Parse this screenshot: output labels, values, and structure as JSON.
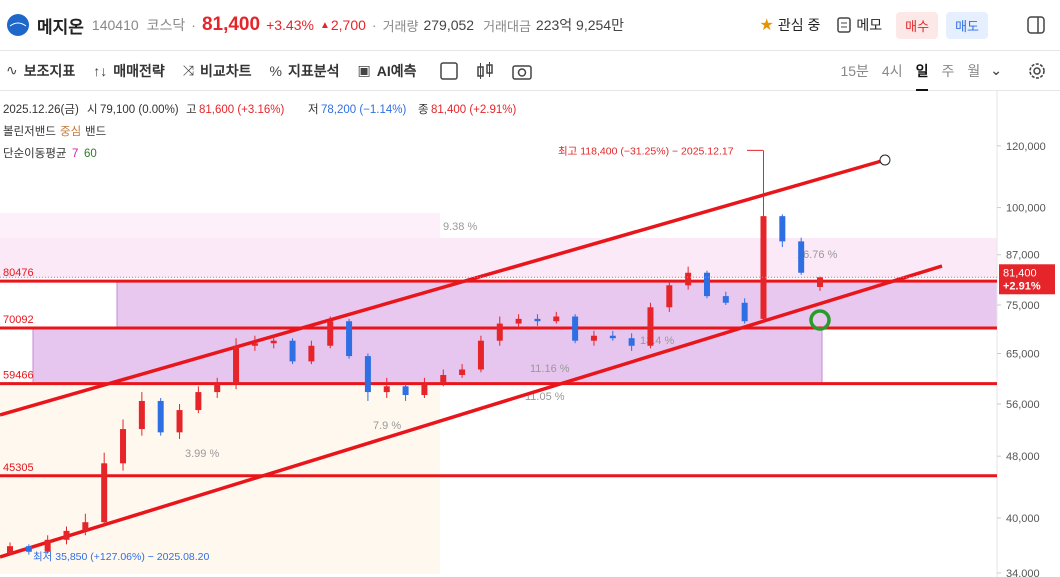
{
  "header": {
    "name": "메지온",
    "code": "140410",
    "market": "코스닥",
    "price": "81,400",
    "change_pct": "+3.43%",
    "change": "2,700",
    "volume_label": "거래량",
    "volume": "279,052",
    "amount_label": "거래대금",
    "amount": "223억 9,254만",
    "watch": "관심 중",
    "memo": "메모",
    "buy": "매수",
    "sell": "매도"
  },
  "toolbar": {
    "tools": [
      "보조지표",
      "매매전략",
      "비교차트",
      "지표분석",
      "AI예측"
    ],
    "periods": [
      "15분",
      "4시",
      "일",
      "주",
      "월"
    ]
  },
  "info": {
    "date": "2025.12.26(금)",
    "open_label": "시",
    "open": "79,100 (0.00%)",
    "high_label": "고",
    "high": "81,600 (+3.16%)",
    "low_label": "저",
    "low": "78,200 (−1.14%)",
    "close_label": "종",
    "close": "81,400 (+2.91%)",
    "bb": "볼린저밴드",
    "bb_mid": "중심",
    "bb_band": "밴드",
    "ma": "단순이동평균",
    "ma_short": "7",
    "ma_long": "60"
  },
  "chart_data": {
    "type": "candlestick",
    "log_scale": true,
    "ylim": [
      33600,
      141500
    ],
    "yticks": [
      {
        "value": 120000,
        "label": "120,000"
      },
      {
        "value": 100000,
        "label": "100,000"
      },
      {
        "value": 87000,
        "label": "87,000"
      },
      {
        "value": 75000,
        "label": "75,000"
      },
      {
        "value": 65000,
        "label": "65,000"
      },
      {
        "value": 56000,
        "label": "56,000"
      },
      {
        "value": 48000,
        "label": "48,000"
      },
      {
        "value": 40000,
        "label": "40,000"
      },
      {
        "value": 34000,
        "label": "34,000"
      }
    ],
    "up_color": "#e5252a",
    "down_color": "#2f6fe4",
    "open": [
      36000,
      36800,
      36200,
      37500,
      38500,
      39500,
      47000,
      52000,
      56500,
      51500,
      55000,
      58000,
      59500,
      66500,
      67000,
      67500,
      63500,
      66500,
      71500,
      64500,
      58000,
      59000,
      57500,
      59500,
      61000,
      62000,
      67500,
      71000,
      72000,
      71500,
      72500,
      67500,
      68500,
      68000,
      66500,
      74500,
      79500,
      82500,
      77000,
      75500,
      72000,
      97500,
      90500,
      79100
    ],
    "high": [
      37200,
      37000,
      38000,
      39000,
      40500,
      48500,
      53500,
      58000,
      57000,
      56000,
      59000,
      60500,
      68000,
      68500,
      68500,
      68000,
      67500,
      72500,
      72000,
      65000,
      60500,
      59500,
      60500,
      62000,
      63000,
      68500,
      72500,
      73000,
      73000,
      73500,
      73000,
      69500,
      69500,
      69000,
      75500,
      80500,
      84000,
      83000,
      78000,
      76500,
      118400,
      98000,
      91500,
      81600
    ],
    "low": [
      35850,
      35900,
      36000,
      37000,
      38000,
      39000,
      46000,
      51000,
      51000,
      50500,
      54500,
      57000,
      58500,
      65500,
      66000,
      63000,
      63000,
      66000,
      64000,
      56500,
      57000,
      56500,
      57000,
      59000,
      60500,
      61500,
      66500,
      70000,
      70500,
      71000,
      67000,
      66500,
      67500,
      65500,
      66000,
      73500,
      78500,
      76500,
      75000,
      71000,
      71500,
      89000,
      82000,
      78200
    ],
    "close": [
      36800,
      36200,
      37500,
      38500,
      39500,
      47000,
      52000,
      56500,
      51500,
      55000,
      58000,
      59500,
      66500,
      67000,
      67500,
      63500,
      66500,
      71500,
      64500,
      58000,
      59000,
      57500,
      59500,
      61000,
      62000,
      67500,
      71000,
      72000,
      71500,
      72500,
      67500,
      68500,
      68000,
      66500,
      74500,
      79500,
      82500,
      77000,
      75500,
      71500,
      97500,
      90500,
      82500,
      81400
    ],
    "levels": [
      {
        "value": 80476,
        "label": "80476"
      },
      {
        "value": 70092,
        "label": "70092"
      },
      {
        "value": 59466,
        "label": "59466"
      },
      {
        "value": 45305,
        "label": "45305"
      }
    ],
    "level_color": "#e8151b",
    "last_price": {
      "value": 81400,
      "label": "81,400",
      "change": "+2.91%"
    },
    "max_note": "최고 118,400 (−31.25%) − 2025.12.17",
    "min_note": "최저 35,850 (+127.06%) − 2025.08.20",
    "pct_notes": [
      "9.38 %",
      "16.76 %",
      "11.16 %",
      "7.9 %",
      "3.99 %",
      "13.4 %",
      "11.05 %"
    ]
  }
}
